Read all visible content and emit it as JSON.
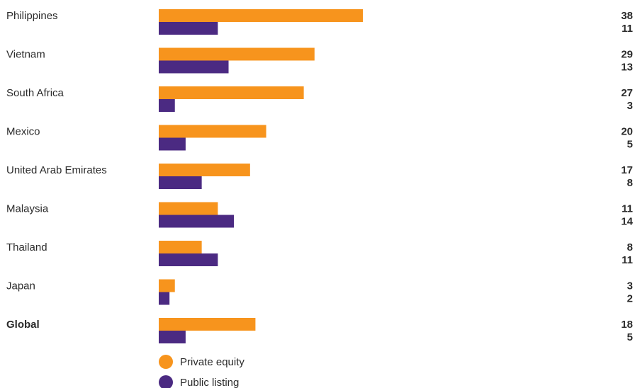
{
  "chart_data": {
    "type": "bar",
    "orientation": "horizontal",
    "categories": [
      "Philippines",
      "Vietnam",
      "South Africa",
      "Mexico",
      "United Arab Emirates",
      "Malaysia",
      "Thailand",
      "Japan",
      "Global"
    ],
    "bold_categories": [
      "Global"
    ],
    "series": [
      {
        "name": "Private equity",
        "color": "#f7941d",
        "values": [
          38,
          29,
          27,
          20,
          17,
          11,
          8,
          3,
          18
        ]
      },
      {
        "name": "Public listing",
        "color": "#4b2a82",
        "values": [
          11,
          13,
          3,
          5,
          8,
          14,
          11,
          2,
          5
        ]
      }
    ],
    "xlim": [
      0,
      38
    ],
    "grid": false,
    "legend_position": "bottom-left",
    "data_labels": "right"
  }
}
